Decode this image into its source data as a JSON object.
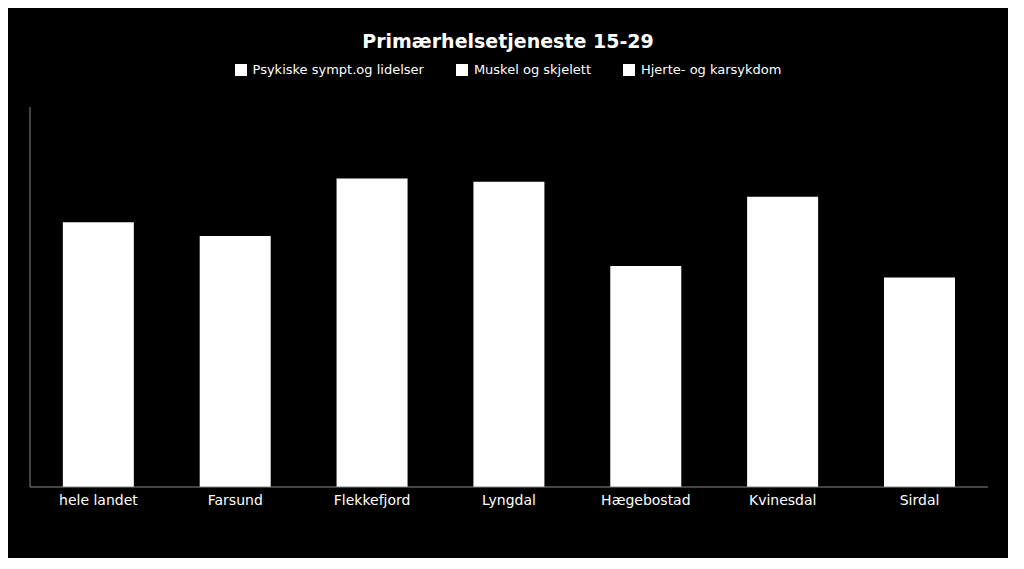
{
  "chart_data": {
    "type": "bar",
    "title": "Primærhelsetjeneste 15-29",
    "categories": [
      "hele landet",
      "Farsund",
      "Flekkefjord",
      "Lyngdal",
      "Hægebostad",
      "Kvinesdal",
      "Sirdal"
    ],
    "values": [
      230,
      218,
      268,
      265,
      192,
      252,
      182
    ],
    "color": "#ffffff",
    "ylim": [
      0,
      330
    ],
    "legend_labels": [
      "Psykiske sympt.og lidelser",
      "Muskel og skjelett",
      "Hjerte- og karsykdom"
    ],
    "legend": "top",
    "grid": false,
    "tick_labels": "x"
  }
}
